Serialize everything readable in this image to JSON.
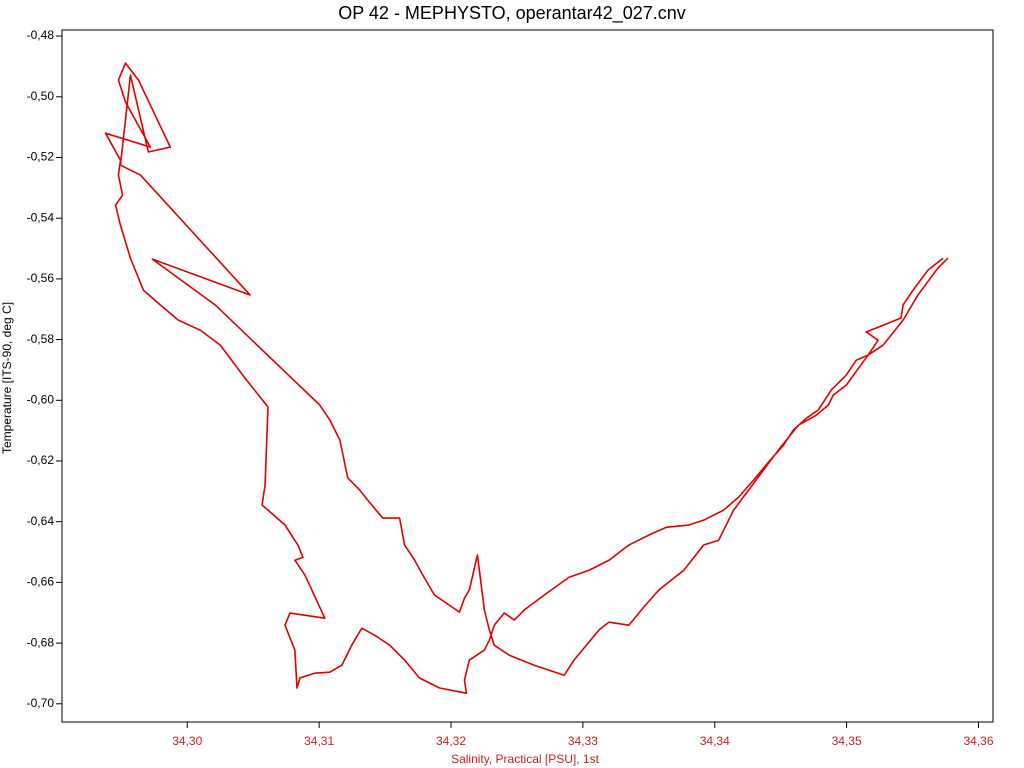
{
  "chart_data": {
    "type": "line",
    "title": "OP 42 - MEPHYSTO, operantar42_027.cnv",
    "x_label": "Salinity, Practical [PSU], 1st",
    "y_label": "Temperature [ITS-90, deg C]",
    "color": "#e00000",
    "xlim": [
      34.2905,
      34.3611
    ],
    "ylim": [
      -0.706,
      -0.478
    ],
    "xticks": [
      {
        "value": 34.3,
        "label": "34,30"
      },
      {
        "value": 34.31,
        "label": "34,31"
      },
      {
        "value": 34.32,
        "label": "34,32"
      },
      {
        "value": 34.33,
        "label": "34,33"
      },
      {
        "value": 34.34,
        "label": "34,34"
      },
      {
        "value": 34.35,
        "label": "34,35"
      },
      {
        "value": 34.36,
        "label": "34,36"
      }
    ],
    "yticks": [
      {
        "value": -0.48,
        "label": "-0,48"
      },
      {
        "value": -0.5,
        "label": "-0,50"
      },
      {
        "value": -0.52,
        "label": "-0,52"
      },
      {
        "value": -0.54,
        "label": "-0,54"
      },
      {
        "value": -0.56,
        "label": "-0,56"
      },
      {
        "value": -0.58,
        "label": "-0,58"
      },
      {
        "value": -0.6,
        "label": "-0,60"
      },
      {
        "value": -0.62,
        "label": "-0,62"
      },
      {
        "value": -0.64,
        "label": "-0,64"
      },
      {
        "value": -0.66,
        "label": "-0,66"
      },
      {
        "value": -0.68,
        "label": "-0,68"
      },
      {
        "value": -0.7,
        "label": "-0,70"
      }
    ],
    "x": [
      34.35731,
      34.35617,
      34.35504,
      34.35428,
      34.35413,
      34.35148,
      34.35239,
      34.35163,
      34.35073,
      34.34997,
      34.34884,
      34.34785,
      34.34695,
      34.34596,
      34.34521,
      34.34407,
      34.34294,
      34.34181,
      34.34067,
      34.33916,
      34.33803,
      34.33636,
      34.335,
      34.33349,
      34.33198,
      34.33047,
      34.32895,
      34.32706,
      34.32555,
      34.3248,
      34.32404,
      34.32328,
      34.32291,
      34.32253,
      34.32139,
      34.32102,
      34.32117,
      34.31913,
      34.31761,
      34.31648,
      34.31535,
      34.31421,
      34.31323,
      34.31247,
      34.31172,
      34.31081,
      34.30968,
      34.30854,
      34.30832,
      34.30816,
      34.30741,
      34.30779,
      34.31043,
      34.30892,
      34.30816,
      34.30877,
      34.30839,
      34.30741,
      34.30567,
      34.3059,
      34.30612,
      34.30438,
      34.30249,
      34.30098,
      34.29932,
      34.29796,
      34.29667,
      34.29569,
      34.29493,
      34.29456,
      34.29509,
      34.29478,
      34.29493,
      34.2938,
      34.2972,
      34.29531,
      34.29478,
      34.29531,
      34.2963,
      34.29871,
      34.29705,
      34.29569,
      34.29493,
      34.29645,
      34.30476,
      34.29735,
      34.30212,
      34.31005,
      34.31081,
      34.31157,
      34.31217,
      34.31308,
      34.31368,
      34.31482,
      34.3161,
      34.31648,
      34.31724,
      34.31799,
      34.31875,
      34.32064,
      34.32102,
      34.32139,
      34.322,
      34.32215,
      34.32253,
      34.32291,
      34.32328,
      34.32442,
      34.32631,
      34.32858,
      34.32933,
      34.33122,
      34.33198,
      34.33349,
      34.33462,
      34.33576,
      34.33765,
      34.33916,
      34.3403,
      34.34143,
      34.34256,
      34.34483,
      34.34634,
      34.3477,
      34.34861,
      34.34899,
      34.34997,
      34.35163,
      34.35277,
      34.35428,
      34.35541,
      34.35693,
      34.35768
    ],
    "values": [
      -0.5532,
      -0.5571,
      -0.5637,
      -0.5686,
      -0.5729,
      -0.5775,
      -0.5802,
      -0.5851,
      -0.5868,
      -0.5917,
      -0.5966,
      -0.6032,
      -0.6059,
      -0.6098,
      -0.6148,
      -0.6204,
      -0.6263,
      -0.6319,
      -0.6362,
      -0.6395,
      -0.6411,
      -0.6418,
      -0.6444,
      -0.6477,
      -0.6527,
      -0.656,
      -0.6583,
      -0.6642,
      -0.6691,
      -0.6724,
      -0.6701,
      -0.6741,
      -0.679,
      -0.6823,
      -0.6856,
      -0.6922,
      -0.6965,
      -0.6948,
      -0.6915,
      -0.6856,
      -0.6807,
      -0.6774,
      -0.6751,
      -0.6807,
      -0.6873,
      -0.6896,
      -0.6899,
      -0.6915,
      -0.6948,
      -0.6823,
      -0.6741,
      -0.6701,
      -0.6718,
      -0.6576,
      -0.6527,
      -0.6517,
      -0.6477,
      -0.6411,
      -0.6345,
      -0.6279,
      -0.6022,
      -0.5927,
      -0.5818,
      -0.5769,
      -0.5736,
      -0.5686,
      -0.5637,
      -0.5532,
      -0.5423,
      -0.5357,
      -0.5324,
      -0.5258,
      -0.5209,
      -0.512,
      -0.5166,
      -0.5017,
      -0.4945,
      -0.4889,
      -0.4945,
      -0.5166,
      -0.5182,
      -0.4929,
      -0.5225,
      -0.5258,
      -0.5653,
      -0.5535,
      -0.5686,
      -0.6016,
      -0.6065,
      -0.6131,
      -0.6256,
      -0.6296,
      -0.6329,
      -0.6388,
      -0.6388,
      -0.6477,
      -0.6527,
      -0.6586,
      -0.6642,
      -0.6698,
      -0.6652,
      -0.6625,
      -0.651,
      -0.656,
      -0.6691,
      -0.6757,
      -0.6807,
      -0.684,
      -0.6873,
      -0.6906,
      -0.6856,
      -0.6757,
      -0.6731,
      -0.6741,
      -0.6681,
      -0.6625,
      -0.656,
      -0.6477,
      -0.6461,
      -0.6362,
      -0.6296,
      -0.6164,
      -0.6082,
      -0.6049,
      -0.6016,
      -0.5983,
      -0.595,
      -0.5851,
      -0.5818,
      -0.5736,
      -0.5653,
      -0.5564,
      -0.5532
    ]
  }
}
